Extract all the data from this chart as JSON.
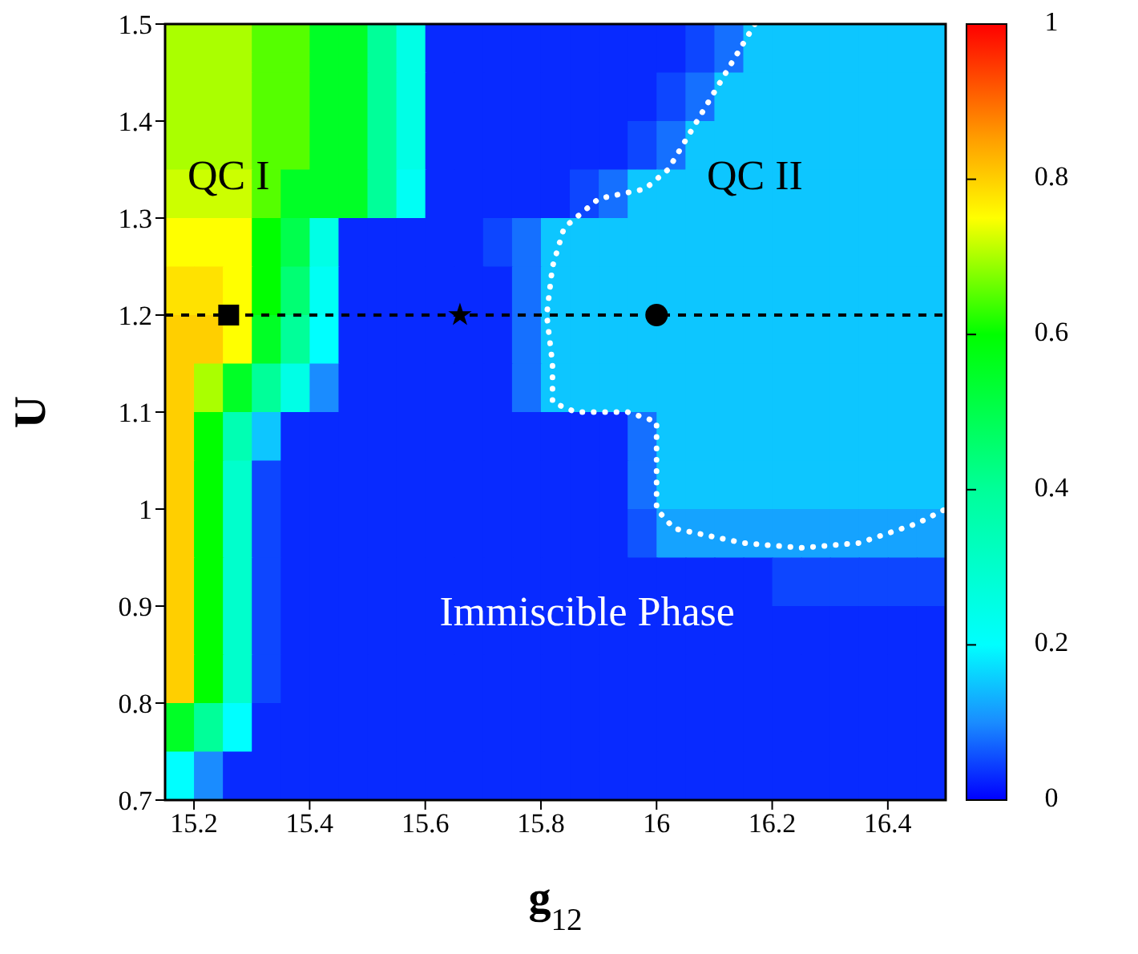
{
  "chart_data": {
    "type": "heatmap",
    "xlabel": "g$_{12}$",
    "ylabel": "U",
    "xlim": [
      15.15,
      16.5
    ],
    "xticks": [
      15.2,
      15.4,
      15.6,
      15.8,
      16,
      16.2,
      16.4
    ],
    "ylim": [
      0.7,
      1.5
    ],
    "yticks": [
      0.7,
      0.8,
      0.9,
      1,
      1.1,
      1.2,
      1.3,
      1.4,
      1.5
    ],
    "clim": [
      0,
      1
    ],
    "cticks": [
      0,
      0.2,
      0.4,
      0.6,
      0.8,
      1
    ],
    "cells": [
      [
        0.7,
        0.7,
        0.7,
        0.65,
        0.65,
        0.55,
        0.55,
        0.4,
        0.25,
        0.03,
        0.03,
        0.03,
        0.03,
        0.03,
        0.03,
        0.03,
        0.03,
        0.03,
        0.05,
        0.08,
        0.15,
        0.15,
        0.15,
        0.15,
        0.15,
        0.15,
        0.15
      ],
      [
        0.7,
        0.7,
        0.7,
        0.65,
        0.65,
        0.55,
        0.55,
        0.4,
        0.25,
        0.03,
        0.03,
        0.03,
        0.03,
        0.03,
        0.03,
        0.03,
        0.03,
        0.05,
        0.08,
        0.15,
        0.15,
        0.15,
        0.15,
        0.15,
        0.15,
        0.15,
        0.15
      ],
      [
        0.7,
        0.7,
        0.7,
        0.65,
        0.65,
        0.55,
        0.55,
        0.4,
        0.25,
        0.03,
        0.03,
        0.03,
        0.03,
        0.03,
        0.03,
        0.03,
        0.05,
        0.08,
        0.15,
        0.15,
        0.15,
        0.15,
        0.15,
        0.15,
        0.15,
        0.15,
        0.15
      ],
      [
        0.72,
        0.72,
        0.72,
        0.65,
        0.55,
        0.55,
        0.55,
        0.4,
        0.22,
        0.03,
        0.03,
        0.03,
        0.03,
        0.03,
        0.05,
        0.08,
        0.15,
        0.15,
        0.15,
        0.15,
        0.15,
        0.15,
        0.15,
        0.15,
        0.15,
        0.15,
        0.15
      ],
      [
        0.75,
        0.75,
        0.75,
        0.6,
        0.5,
        0.25,
        0.03,
        0.03,
        0.03,
        0.03,
        0.03,
        0.05,
        0.08,
        0.15,
        0.15,
        0.15,
        0.15,
        0.15,
        0.15,
        0.15,
        0.15,
        0.15,
        0.15,
        0.15,
        0.15,
        0.15,
        0.15
      ],
      [
        0.78,
        0.78,
        0.75,
        0.6,
        0.45,
        0.22,
        0.03,
        0.03,
        0.03,
        0.03,
        0.03,
        0.03,
        0.08,
        0.15,
        0.15,
        0.15,
        0.15,
        0.15,
        0.15,
        0.15,
        0.15,
        0.15,
        0.15,
        0.15,
        0.15,
        0.15,
        0.15
      ],
      [
        0.8,
        0.8,
        0.75,
        0.55,
        0.4,
        0.2,
        0.03,
        0.03,
        0.03,
        0.03,
        0.03,
        0.03,
        0.08,
        0.15,
        0.15,
        0.15,
        0.15,
        0.15,
        0.15,
        0.15,
        0.15,
        0.15,
        0.15,
        0.15,
        0.15,
        0.15,
        0.15
      ],
      [
        0.8,
        0.7,
        0.55,
        0.4,
        0.25,
        0.1,
        0.03,
        0.03,
        0.03,
        0.03,
        0.03,
        0.03,
        0.08,
        0.15,
        0.15,
        0.15,
        0.15,
        0.15,
        0.15,
        0.15,
        0.15,
        0.15,
        0.15,
        0.15,
        0.15,
        0.15,
        0.15
      ],
      [
        0.8,
        0.6,
        0.35,
        0.15,
        0.03,
        0.03,
        0.03,
        0.03,
        0.03,
        0.03,
        0.03,
        0.03,
        0.03,
        0.03,
        0.03,
        0.03,
        0.08,
        0.15,
        0.15,
        0.15,
        0.15,
        0.15,
        0.15,
        0.15,
        0.15,
        0.15,
        0.15
      ],
      [
        0.8,
        0.6,
        0.3,
        0.05,
        0.03,
        0.03,
        0.03,
        0.03,
        0.03,
        0.03,
        0.03,
        0.03,
        0.03,
        0.03,
        0.03,
        0.03,
        0.08,
        0.15,
        0.15,
        0.15,
        0.15,
        0.15,
        0.15,
        0.15,
        0.15,
        0.15,
        0.15
      ],
      [
        0.8,
        0.6,
        0.3,
        0.05,
        0.03,
        0.03,
        0.03,
        0.03,
        0.03,
        0.03,
        0.03,
        0.03,
        0.03,
        0.03,
        0.03,
        0.03,
        0.06,
        0.12,
        0.12,
        0.12,
        0.12,
        0.12,
        0.12,
        0.12,
        0.12,
        0.12,
        0.12
      ],
      [
        0.8,
        0.6,
        0.3,
        0.05,
        0.03,
        0.03,
        0.03,
        0.03,
        0.03,
        0.03,
        0.03,
        0.03,
        0.03,
        0.03,
        0.03,
        0.03,
        0.03,
        0.03,
        0.03,
        0.03,
        0.03,
        0.05,
        0.05,
        0.05,
        0.05,
        0.05,
        0.05
      ],
      [
        0.8,
        0.6,
        0.3,
        0.05,
        0.03,
        0.03,
        0.03,
        0.03,
        0.03,
        0.03,
        0.03,
        0.03,
        0.03,
        0.03,
        0.03,
        0.03,
        0.03,
        0.03,
        0.03,
        0.03,
        0.03,
        0.03,
        0.03,
        0.03,
        0.03,
        0.03,
        0.03
      ],
      [
        0.8,
        0.6,
        0.3,
        0.05,
        0.03,
        0.03,
        0.03,
        0.03,
        0.03,
        0.03,
        0.03,
        0.03,
        0.03,
        0.03,
        0.03,
        0.03,
        0.03,
        0.03,
        0.03,
        0.03,
        0.03,
        0.03,
        0.03,
        0.03,
        0.03,
        0.03,
        0.03
      ],
      [
        0.55,
        0.4,
        0.2,
        0.03,
        0.03,
        0.03,
        0.03,
        0.03,
        0.03,
        0.03,
        0.03,
        0.03,
        0.03,
        0.03,
        0.03,
        0.03,
        0.03,
        0.03,
        0.03,
        0.03,
        0.03,
        0.03,
        0.03,
        0.03,
        0.03,
        0.03,
        0.03
      ],
      [
        0.2,
        0.1,
        0.03,
        0.03,
        0.03,
        0.03,
        0.03,
        0.03,
        0.03,
        0.03,
        0.03,
        0.03,
        0.03,
        0.03,
        0.03,
        0.03,
        0.03,
        0.03,
        0.03,
        0.03,
        0.03,
        0.03,
        0.03,
        0.03,
        0.03,
        0.03,
        0.03
      ]
    ],
    "series": [
      {
        "type": "line",
        "color": "#ffffff",
        "line_style": "dotted",
        "x": [
          16.17,
          16.1,
          16.05,
          16.02,
          15.98,
          15.9,
          15.84,
          15.82,
          15.81,
          15.82,
          15.82,
          15.86,
          15.95,
          16.0,
          16.0,
          16.0,
          16.03,
          16.15,
          16.25,
          16.35,
          16.45,
          16.5
        ],
        "values": [
          1.5,
          1.43,
          1.38,
          1.35,
          1.33,
          1.32,
          1.29,
          1.25,
          1.2,
          1.15,
          1.11,
          1.1,
          1.1,
          1.09,
          1.05,
          1.0,
          0.98,
          0.965,
          0.96,
          0.965,
          0.985,
          1.0
        ]
      },
      {
        "type": "scatter",
        "color": "#000000",
        "marker": "square",
        "x": [
          15.26
        ],
        "values": [
          1.2
        ]
      },
      {
        "type": "scatter",
        "color": "#000000",
        "marker": "star",
        "x": [
          15.66
        ],
        "values": [
          1.2
        ]
      },
      {
        "type": "scatter",
        "color": "#000000",
        "marker": "circle",
        "x": [
          16.0
        ],
        "values": [
          1.2
        ]
      }
    ],
    "ref_lines": [
      {
        "axis": "y",
        "value": 1.2,
        "color": "#000000",
        "line_style": "dashed"
      }
    ],
    "annotations": [
      "QC I",
      "QC II",
      "Immiscible Phase"
    ]
  }
}
